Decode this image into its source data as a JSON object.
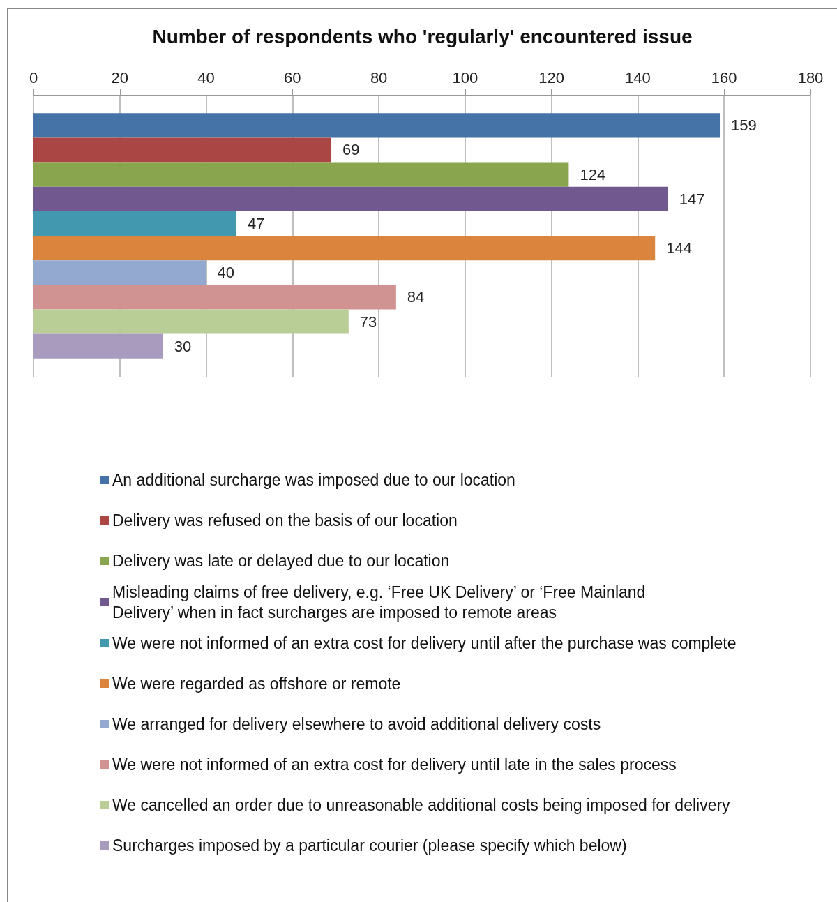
{
  "chart_data": {
    "type": "bar",
    "orientation": "horizontal",
    "title": "Number of respondents who 'regularly' encountered issue",
    "categories": [
      null
    ],
    "series": [
      {
        "name": "An additional surcharge was imposed due to our location",
        "color": "#4572a7",
        "values": [
          159
        ]
      },
      {
        "name": "Delivery was refused on the basis of our location",
        "color": "#aa4643",
        "values": [
          69
        ]
      },
      {
        "name": "Delivery was late or delayed due to our location",
        "color": "#89a54e",
        "values": [
          124
        ]
      },
      {
        "name": "Misleading claims of free delivery, e.g. ‘Free UK Delivery’ or ‘Free Mainland Delivery’ when in fact surcharges are imposed to remote areas",
        "color": "#71588f",
        "values": [
          147
        ]
      },
      {
        "name": "We were not informed of an extra cost for delivery until after the purchase was complete",
        "color": "#4198af",
        "values": [
          47
        ]
      },
      {
        "name": "We were regarded as offshore or remote",
        "color": "#db843d",
        "values": [
          144
        ]
      },
      {
        "name": "We arranged for delivery elsewhere to avoid additional delivery costs",
        "color": "#93a9cf",
        "values": [
          40
        ]
      },
      {
        "name": "We were not informed of an extra cost for delivery until late in the sales process",
        "color": "#d19392",
        "values": [
          84
        ]
      },
      {
        "name": "We cancelled an order due to unreasonable additional costs being imposed for delivery",
        "color": "#b9cd96",
        "values": [
          73
        ]
      },
      {
        "name": "Surcharges imposed by a particular courier (please specify which below)",
        "color": "#a99bbd",
        "values": [
          30
        ]
      }
    ],
    "xlim": [
      0,
      180
    ],
    "xticks": [
      0,
      20,
      40,
      60,
      80,
      100,
      120,
      140,
      160,
      180
    ],
    "grid": "x",
    "legend": "bottom",
    "data_labels": true
  }
}
